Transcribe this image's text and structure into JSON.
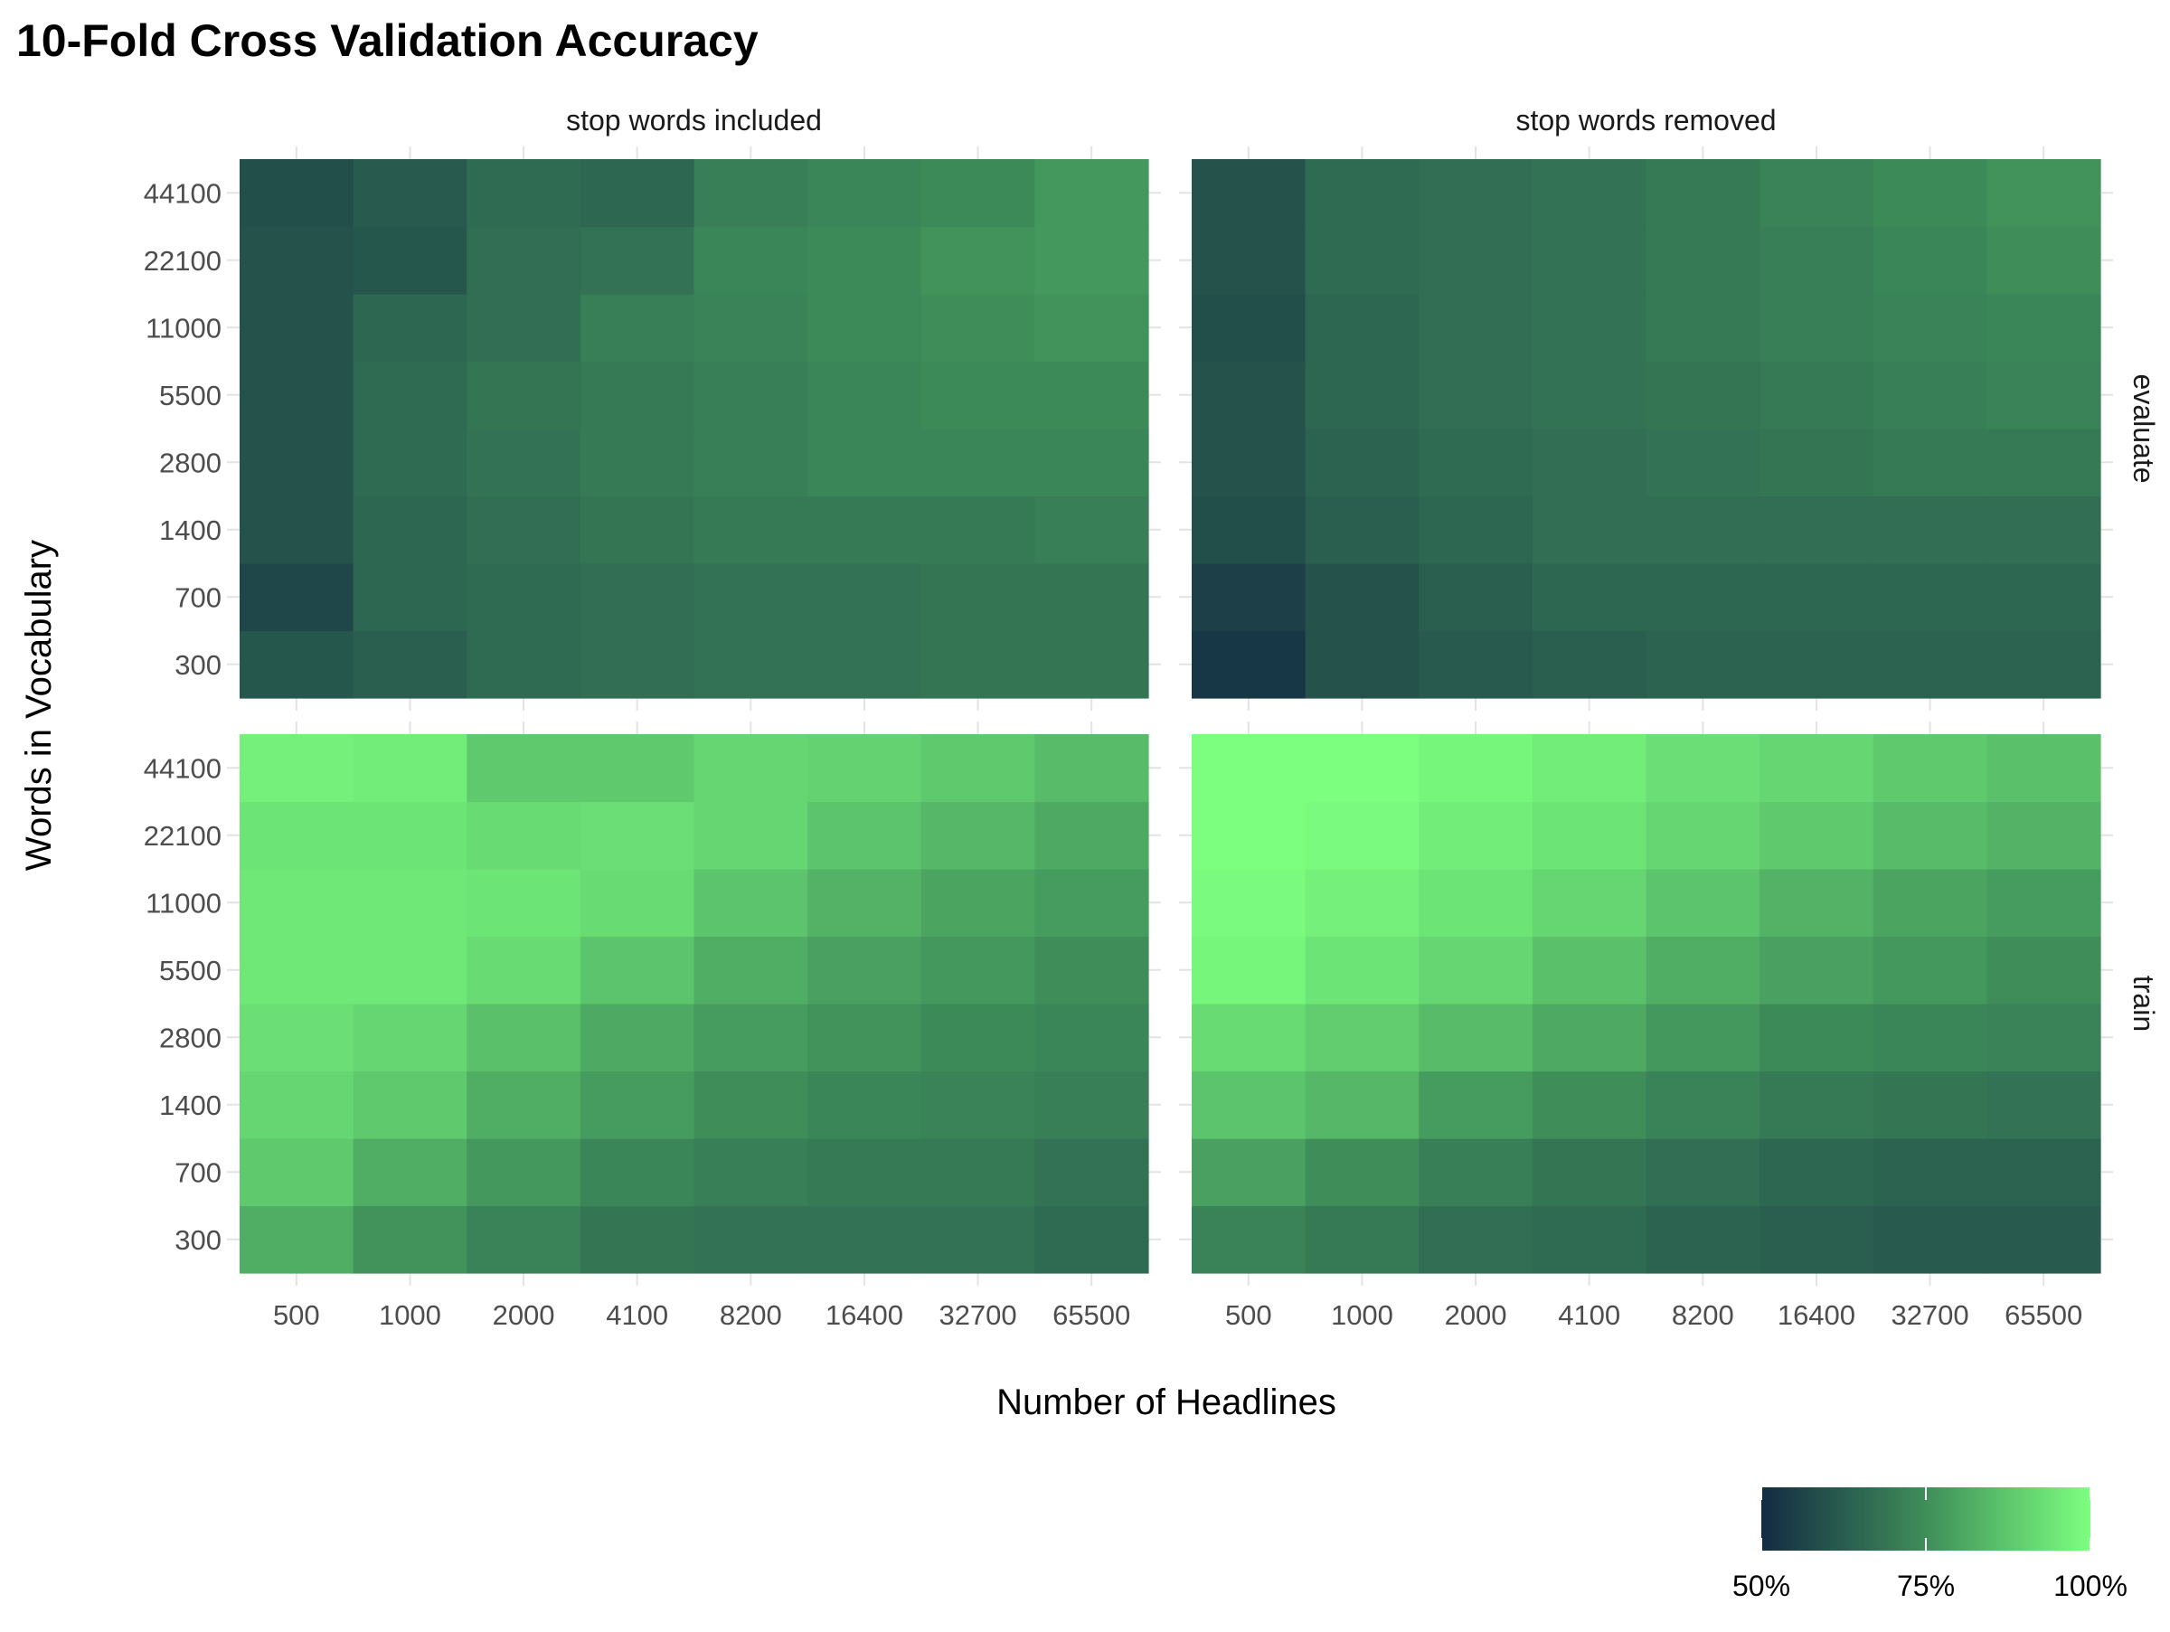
{
  "chart_data": {
    "type": "heatmap",
    "title": "10-Fold Cross Validation Accuracy",
    "xlabel": "Number of Headlines",
    "ylabel": "Words in Vocabulary",
    "x_categories": [
      "500",
      "1000",
      "2000",
      "4100",
      "8200",
      "16400",
      "32700",
      "65500"
    ],
    "y_categories": [
      "300",
      "700",
      "1400",
      "2800",
      "5500",
      "11000",
      "22100",
      "44100"
    ],
    "col_facets": [
      "stop words included",
      "stop words removed"
    ],
    "row_facets": [
      "evaluate",
      "train"
    ],
    "color_scale": {
      "min": 0.5,
      "max": 1.0,
      "low_color": "#132B43",
      "mid_color": "#3F8E5A",
      "high_color": "#7CFF7F",
      "breaks": [
        0.5,
        0.75,
        1.0
      ],
      "break_labels": [
        "50%",
        "75%",
        "100%"
      ]
    },
    "legend_position": "bottom-right",
    "panels": [
      {
        "row": "evaluate",
        "col": "stop words included",
        "values": [
          [
            0.61,
            0.63,
            0.66,
            0.67,
            0.68,
            0.68,
            0.69,
            0.69
          ],
          [
            0.57,
            0.65,
            0.66,
            0.67,
            0.68,
            0.68,
            0.69,
            0.69
          ],
          [
            0.6,
            0.65,
            0.67,
            0.69,
            0.7,
            0.7,
            0.7,
            0.71
          ],
          [
            0.6,
            0.66,
            0.68,
            0.7,
            0.71,
            0.73,
            0.73,
            0.73
          ],
          [
            0.6,
            0.66,
            0.69,
            0.7,
            0.71,
            0.73,
            0.74,
            0.74
          ],
          [
            0.6,
            0.65,
            0.67,
            0.71,
            0.72,
            0.74,
            0.75,
            0.76
          ],
          [
            0.6,
            0.61,
            0.67,
            0.68,
            0.73,
            0.74,
            0.76,
            0.77
          ],
          [
            0.59,
            0.62,
            0.66,
            0.65,
            0.71,
            0.73,
            0.74,
            0.77
          ]
        ]
      },
      {
        "row": "evaluate",
        "col": "stop words removed",
        "values": [
          [
            0.53,
            0.6,
            0.62,
            0.63,
            0.64,
            0.64,
            0.64,
            0.64
          ],
          [
            0.55,
            0.6,
            0.63,
            0.65,
            0.65,
            0.65,
            0.65,
            0.65
          ],
          [
            0.59,
            0.63,
            0.65,
            0.67,
            0.67,
            0.67,
            0.67,
            0.67
          ],
          [
            0.6,
            0.64,
            0.66,
            0.67,
            0.68,
            0.69,
            0.7,
            0.7
          ],
          [
            0.6,
            0.65,
            0.67,
            0.68,
            0.69,
            0.7,
            0.71,
            0.72
          ],
          [
            0.59,
            0.65,
            0.67,
            0.68,
            0.7,
            0.71,
            0.72,
            0.73
          ],
          [
            0.6,
            0.66,
            0.67,
            0.68,
            0.7,
            0.71,
            0.73,
            0.75
          ],
          [
            0.6,
            0.66,
            0.67,
            0.68,
            0.7,
            0.72,
            0.74,
            0.76
          ]
        ]
      },
      {
        "row": "train",
        "col": "stop words included",
        "values": [
          [
            0.82,
            0.76,
            0.72,
            0.69,
            0.68,
            0.68,
            0.68,
            0.66
          ],
          [
            0.88,
            0.82,
            0.77,
            0.73,
            0.71,
            0.7,
            0.7,
            0.68
          ],
          [
            0.91,
            0.88,
            0.82,
            0.78,
            0.75,
            0.73,
            0.72,
            0.71
          ],
          [
            0.93,
            0.91,
            0.86,
            0.81,
            0.78,
            0.76,
            0.74,
            0.73
          ],
          [
            0.95,
            0.95,
            0.92,
            0.87,
            0.82,
            0.79,
            0.77,
            0.75
          ],
          [
            0.95,
            0.95,
            0.94,
            0.92,
            0.87,
            0.83,
            0.8,
            0.78
          ],
          [
            0.94,
            0.94,
            0.92,
            0.93,
            0.91,
            0.87,
            0.84,
            0.81
          ],
          [
            0.97,
            0.96,
            0.88,
            0.88,
            0.91,
            0.9,
            0.88,
            0.85
          ]
        ]
      },
      {
        "row": "train",
        "col": "stop words removed",
        "values": [
          [
            0.72,
            0.7,
            0.67,
            0.66,
            0.64,
            0.63,
            0.62,
            0.62
          ],
          [
            0.79,
            0.75,
            0.71,
            0.69,
            0.67,
            0.65,
            0.64,
            0.64
          ],
          [
            0.87,
            0.84,
            0.78,
            0.75,
            0.72,
            0.7,
            0.69,
            0.68
          ],
          [
            0.92,
            0.89,
            0.85,
            0.81,
            0.77,
            0.74,
            0.73,
            0.72
          ],
          [
            0.98,
            0.94,
            0.91,
            0.86,
            0.82,
            0.79,
            0.77,
            0.75
          ],
          [
            0.99,
            0.97,
            0.94,
            0.91,
            0.87,
            0.83,
            0.8,
            0.78
          ],
          [
            1.0,
            0.99,
            0.96,
            0.94,
            0.91,
            0.88,
            0.85,
            0.83
          ],
          [
            1.0,
            1.0,
            0.98,
            0.96,
            0.93,
            0.91,
            0.88,
            0.86
          ]
        ]
      }
    ]
  }
}
